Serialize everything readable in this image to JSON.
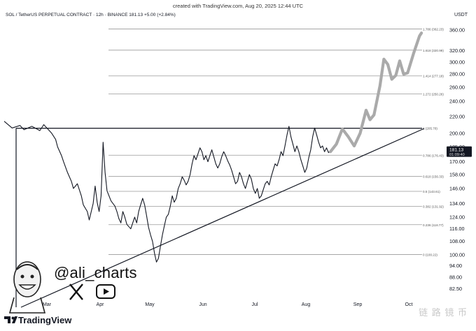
{
  "header": {
    "credit": "created with TradingView.com, Aug 20, 2025 12:44 UTC",
    "symbol_line": "SOL / TetherUS PERPETUAL CONTRACT · 12h · BINANCE  181.13  +5.00 (+2.84%)",
    "currency": "USDT"
  },
  "author": {
    "handle": "@ali_charts",
    "icons": [
      "x-logo-icon",
      "youtube-icon",
      "avatar-caricature"
    ]
  },
  "footer": {
    "brand": "TradingView",
    "logo_icon": "tradingview-logo-icon",
    "watermark": "链 路 镜 币"
  },
  "chart_data": {
    "type": "line",
    "title": "",
    "xlabel": "",
    "ylabel": "",
    "x_ticks": [
      "Mar",
      "Apr",
      "May",
      "Jun",
      "Jul",
      "Aug",
      "Sep",
      "Oct"
    ],
    "y_ticks": [
      82.5,
      88.0,
      94.0,
      100.0,
      108.0,
      116.0,
      124.0,
      134.0,
      146.0,
      158.0,
      170.0,
      185.0,
      200.0,
      220.0,
      240.0,
      260.0,
      280.0,
      300.0,
      320.0,
      360.0
    ],
    "ylim": [
      80,
      370
    ],
    "scale": "log",
    "last_price": "181.13",
    "countdown": "01:09:40",
    "accent_color": "#131722",
    "fib_levels": [
      {
        "label": "1.786 (362.23)",
        "value": 362.23
      },
      {
        "label": "1.618 (320.99)",
        "value": 320.99
      },
      {
        "label": "1.414 (277.18)",
        "value": 277.18
      },
      {
        "label": "1.272 (250.26)",
        "value": 250.26
      },
      {
        "label": "1 (205.78)",
        "value": 205.78
      },
      {
        "label": "0.786 (176.43)",
        "value": 176.43
      },
      {
        "label": "0.618 (156.33)",
        "value": 156.33
      },
      {
        "label": "0.5 (143.61)",
        "value": 143.61
      },
      {
        "label": "0.382 (131.92)",
        "value": 131.92
      },
      {
        "label": "0.236 (118.77)",
        "value": 118.77
      },
      {
        "label": "0 (100.22)",
        "value": 100.22
      }
    ],
    "series": [
      {
        "style": "price",
        "color": "#131722",
        "points": [
          [
            0,
            214
          ],
          [
            0.2,
            206
          ],
          [
            0.4,
            209
          ],
          [
            0.5,
            204
          ],
          [
            0.7,
            208
          ],
          [
            0.9,
            203
          ],
          [
            1.0,
            210
          ],
          [
            1.1,
            205
          ],
          [
            1.2,
            200
          ],
          [
            1.3,
            193
          ],
          [
            1.35,
            185
          ],
          [
            1.45,
            176
          ],
          [
            1.5,
            170
          ],
          [
            1.6,
            160
          ],
          [
            1.7,
            152
          ],
          [
            1.75,
            146
          ],
          [
            1.85,
            150
          ],
          [
            1.95,
            140
          ],
          [
            2.0,
            133
          ],
          [
            2.1,
            128
          ],
          [
            2.15,
            122
          ],
          [
            2.25,
            134
          ],
          [
            2.3,
            148
          ],
          [
            2.35,
            135
          ],
          [
            2.4,
            128
          ],
          [
            2.45,
            140
          ],
          [
            2.5,
            190
          ],
          [
            2.55,
            160
          ],
          [
            2.6,
            144
          ],
          [
            2.7,
            136
          ],
          [
            2.8,
            132
          ],
          [
            2.85,
            128
          ],
          [
            2.9,
            123
          ],
          [
            2.95,
            120
          ],
          [
            3.0,
            128
          ],
          [
            3.05,
            124
          ],
          [
            3.1,
            119
          ],
          [
            3.2,
            116
          ],
          [
            3.3,
            124
          ],
          [
            3.35,
            120
          ],
          [
            3.4,
            128
          ],
          [
            3.45,
            133
          ],
          [
            3.5,
            138
          ],
          [
            3.55,
            133
          ],
          [
            3.6,
            125
          ],
          [
            3.65,
            117
          ],
          [
            3.7,
            112
          ],
          [
            3.75,
            108
          ],
          [
            3.8,
            101
          ],
          [
            3.85,
            96
          ],
          [
            3.9,
            98
          ],
          [
            3.95,
            105
          ],
          [
            4.0,
            112
          ],
          [
            4.05,
            118
          ],
          [
            4.1,
            124
          ],
          [
            4.15,
            126
          ],
          [
            4.2,
            132
          ],
          [
            4.25,
            140
          ],
          [
            4.3,
            135
          ],
          [
            4.35,
            138
          ],
          [
            4.4,
            146
          ],
          [
            4.45,
            150
          ],
          [
            4.5,
            156
          ],
          [
            4.55,
            153
          ],
          [
            4.6,
            149
          ],
          [
            4.65,
            152
          ],
          [
            4.7,
            158
          ],
          [
            4.75,
            168
          ],
          [
            4.8,
            176
          ],
          [
            4.85,
            172
          ],
          [
            4.9,
            178
          ],
          [
            4.95,
            184
          ],
          [
            5.0,
            180
          ],
          [
            5.05,
            172
          ],
          [
            5.1,
            176
          ],
          [
            5.15,
            170
          ],
          [
            5.2,
            176
          ],
          [
            5.25,
            182
          ],
          [
            5.3,
            175
          ],
          [
            5.35,
            168
          ],
          [
            5.4,
            164
          ],
          [
            5.45,
            168
          ],
          [
            5.5,
            175
          ],
          [
            5.55,
            180
          ],
          [
            5.6,
            176
          ],
          [
            5.65,
            171
          ],
          [
            5.7,
            167
          ],
          [
            5.75,
            162
          ],
          [
            5.8,
            156
          ],
          [
            5.85,
            150
          ],
          [
            5.9,
            152
          ],
          [
            5.95,
            160
          ],
          [
            6.0,
            156
          ],
          [
            6.05,
            150
          ],
          [
            6.1,
            146
          ],
          [
            6.15,
            152
          ],
          [
            6.2,
            158
          ],
          [
            6.25,
            154
          ],
          [
            6.3,
            146
          ],
          [
            6.35,
            142
          ],
          [
            6.4,
            146
          ],
          [
            6.45,
            138
          ],
          [
            6.5,
            140
          ],
          [
            6.55,
            145
          ],
          [
            6.6,
            150
          ],
          [
            6.65,
            152
          ],
          [
            6.7,
            149
          ],
          [
            6.75,
            156
          ],
          [
            6.8,
            162
          ],
          [
            6.85,
            168
          ],
          [
            6.9,
            166
          ],
          [
            6.95,
            172
          ],
          [
            7.0,
            180
          ],
          [
            7.05,
            176
          ],
          [
            7.1,
            186
          ],
          [
            7.15,
            198
          ],
          [
            7.2,
            208
          ],
          [
            7.25,
            196
          ],
          [
            7.3,
            188
          ],
          [
            7.35,
            180
          ],
          [
            7.4,
            186
          ],
          [
            7.45,
            180
          ],
          [
            7.5,
            172
          ],
          [
            7.55,
            166
          ],
          [
            7.6,
            160
          ],
          [
            7.65,
            164
          ],
          [
            7.7,
            174
          ],
          [
            7.75,
            182
          ],
          [
            7.8,
            196
          ],
          [
            7.85,
            206
          ],
          [
            7.9,
            198
          ],
          [
            7.95,
            190
          ],
          [
            8.0,
            184
          ],
          [
            8.05,
            186
          ],
          [
            8.1,
            180
          ],
          [
            8.15,
            184
          ],
          [
            8.2,
            179
          ],
          [
            8.25,
            181.13
          ]
        ]
      },
      {
        "style": "projection",
        "color": "#aaaaaa",
        "points": [
          [
            8.25,
            180
          ],
          [
            8.4,
            188
          ],
          [
            8.55,
            205
          ],
          [
            8.7,
            196
          ],
          [
            8.85,
            186
          ],
          [
            9.0,
            200
          ],
          [
            9.15,
            228
          ],
          [
            9.25,
            216
          ],
          [
            9.35,
            222
          ],
          [
            9.5,
            262
          ],
          [
            9.6,
            305
          ],
          [
            9.7,
            296
          ],
          [
            9.8,
            272
          ],
          [
            9.9,
            278
          ],
          [
            10.0,
            302
          ],
          [
            10.1,
            280
          ],
          [
            10.2,
            282
          ],
          [
            10.35,
            315
          ],
          [
            10.5,
            348
          ],
          [
            10.55,
            354
          ]
        ]
      }
    ],
    "triangle": {
      "upper": 205.78,
      "apex_value": 205.78,
      "base_value": 100.22
    }
  }
}
